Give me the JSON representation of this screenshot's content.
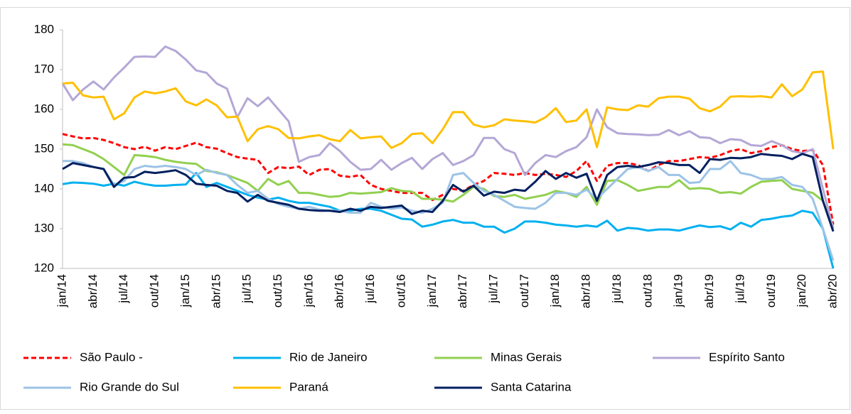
{
  "chart_data": {
    "type": "line",
    "categories": [
      "jan/14",
      null,
      null,
      "abr/14",
      null,
      null,
      "jul/14",
      null,
      null,
      "out/14",
      null,
      null,
      "jan/15",
      null,
      null,
      "abr/15",
      null,
      null,
      "jul/15",
      null,
      null,
      "out/15",
      null,
      null,
      "jan/16",
      null,
      null,
      "abr/16",
      null,
      null,
      "jul/16",
      null,
      null,
      "out/16",
      null,
      null,
      "jan/17",
      null,
      null,
      "abr/17",
      null,
      null,
      "jul/17",
      null,
      null,
      "out/17",
      null,
      null,
      "jan/18",
      null,
      null,
      "abr/18",
      null,
      null,
      "jul/18",
      null,
      null,
      "out/18",
      null,
      null,
      "jan/19",
      null,
      null,
      "abr/19",
      null,
      null,
      "jul/19",
      null,
      null,
      "out/19",
      null,
      null,
      "jan/20",
      null,
      null,
      "abr/20"
    ],
    "ylim": [
      120,
      180
    ],
    "yticks": [
      120,
      130,
      140,
      150,
      160,
      170,
      180
    ],
    "grid": false,
    "series": [
      {
        "name": "São Paulo -",
        "color": "#ff0000",
        "dashed": true,
        "values": [
          153.8,
          153.2,
          152.7,
          152.8,
          152.3,
          151.5,
          150.5,
          150,
          150.6,
          149.6,
          150.5,
          150,
          150.8,
          151.6,
          150.5,
          150.1,
          149,
          148,
          147.6,
          147.3,
          144,
          145.5,
          145.2,
          145.6,
          143.5,
          144.8,
          145,
          143.3,
          143,
          143.5,
          141,
          140,
          139.5,
          139,
          139,
          139,
          137.2,
          138.5,
          140,
          139.5,
          141,
          142,
          144,
          143.8,
          143.5,
          144,
          143.5,
          143.8,
          143.5,
          143,
          144.5,
          147,
          142,
          145.8,
          146.5,
          146.5,
          146,
          144.5,
          146,
          147,
          147,
          147.5,
          148,
          147.8,
          148.5,
          149.5,
          150,
          149,
          149.5,
          150.5,
          151,
          150,
          149.5,
          149.8,
          146,
          131
        ]
      },
      {
        "name": "Rio de Janeiro",
        "color": "#00b0f0",
        "values": [
          141.2,
          141.6,
          141.5,
          141.3,
          140.8,
          141.3,
          140.8,
          141.8,
          141.2,
          140.8,
          140.8,
          141,
          141.1,
          144,
          140.5,
          141.5,
          140.5,
          139.5,
          138.5,
          137.8,
          137.3,
          137.8,
          137,
          136.5,
          136.5,
          136,
          135.5,
          134.5,
          134.5,
          135,
          135,
          134.5,
          133.5,
          132.5,
          132.3,
          130.5,
          131,
          131.8,
          132.2,
          131.5,
          131.5,
          130.5,
          130.5,
          129,
          130,
          131.8,
          131.8,
          131.5,
          131,
          130.8,
          130.5,
          130.8,
          130.5,
          132,
          129.5,
          130.2,
          130,
          129.5,
          129.8,
          129.8,
          129.5,
          130.2,
          130.8,
          130.4,
          130.6,
          129.8,
          131.5,
          130.5,
          132.2,
          132.5,
          133,
          133.3,
          134.5,
          134,
          130,
          120
        ]
      },
      {
        "name": "Minas Gerais",
        "color": "#92d050",
        "values": [
          151.2,
          151,
          150,
          149,
          147.5,
          145.5,
          143.5,
          148.5,
          148.3,
          148,
          147.3,
          146.8,
          146.5,
          146.3,
          144.5,
          144.2,
          143.5,
          142.5,
          141.5,
          139.5,
          142.5,
          141,
          142,
          139,
          139,
          138.5,
          138,
          138.2,
          139,
          138.8,
          139,
          139.2,
          140.2,
          139.5,
          139.3,
          137.5,
          137.5,
          137.3,
          136.8,
          138.5,
          140.5,
          140,
          138.2,
          138,
          138.5,
          137.5,
          138,
          138.5,
          139.5,
          139,
          138,
          140.5,
          136,
          142,
          142.2,
          141,
          139.5,
          140,
          140.5,
          140.5,
          142.2,
          140,
          140.2,
          140,
          139,
          139.2,
          138.8,
          140.5,
          141.8,
          142,
          142.2,
          140,
          139.5,
          139,
          137,
          130.5
        ]
      },
      {
        "name": "Espírito Santo",
        "color": "#b4a7d6",
        "values": [
          166.5,
          162.3,
          165,
          167,
          165,
          168,
          170.5,
          173.2,
          173.3,
          173.2,
          175.8,
          174.7,
          172.5,
          169.8,
          169.2,
          166.5,
          165.2,
          158,
          162.8,
          160.8,
          163,
          160,
          157,
          146.8,
          148,
          148.5,
          151.5,
          149.5,
          146.8,
          144.8,
          145,
          147.3,
          144.8,
          146.5,
          147.8,
          145,
          147.5,
          149,
          146,
          147,
          148.5,
          152.8,
          152.8,
          150,
          149,
          143.5,
          146.5,
          148.5,
          148,
          149.5,
          150.5,
          153,
          160,
          155.5,
          154,
          153.8,
          153.7,
          153.5,
          153.6,
          154.8,
          153.5,
          154.5,
          153,
          152.8,
          151.5,
          152.5,
          152.3,
          151,
          150.8,
          152,
          151,
          149.5,
          149,
          150,
          140,
          130
        ]
      },
      {
        "name": "Rio Grande do Sul",
        "color": "#9dc3e6",
        "values": [
          147,
          147,
          146.5,
          145.5,
          145,
          141,
          142,
          145,
          145.8,
          145.5,
          145.8,
          145.5,
          145,
          143.5,
          144.8,
          144,
          143.5,
          141,
          139,
          139.5,
          137.5,
          136.2,
          135.5,
          135,
          135.5,
          134.8,
          134.5,
          134.5,
          134,
          134,
          136.5,
          135.5,
          135,
          135.3,
          134.5,
          134,
          135,
          136.5,
          143.5,
          144,
          141.5,
          139.5,
          138.5,
          137,
          135.5,
          135.2,
          135,
          136.5,
          139,
          139,
          138.5,
          139.8,
          137.5,
          140,
          142.5,
          145,
          145.5,
          144.5,
          145.5,
          143.5,
          143.5,
          141.5,
          141.7,
          145,
          145,
          147,
          144,
          143.5,
          142.5,
          142.5,
          143,
          141,
          140.5,
          137.5,
          130,
          122
        ]
      },
      {
        "name": "Paraná",
        "color": "#ffc000",
        "values": [
          166.5,
          166.7,
          163.5,
          163,
          163.2,
          157.5,
          159,
          163,
          164.5,
          164,
          164.5,
          165.3,
          162,
          161,
          162.5,
          161,
          158,
          158.2,
          152,
          155,
          155.8,
          155,
          152.8,
          152.7,
          153.2,
          153.5,
          152.5,
          152,
          154.8,
          152.7,
          153,
          153.2,
          150.3,
          151.5,
          153.8,
          154,
          151.5,
          155,
          159.3,
          159.3,
          156.2,
          155.5,
          156,
          157.5,
          157.2,
          157,
          156.7,
          158,
          160.3,
          156.8,
          157.2,
          160,
          150.5,
          160.5,
          160,
          159.8,
          161,
          160.7,
          162.8,
          163.2,
          163.2,
          162.7,
          160.3,
          159.5,
          160.7,
          163.2,
          163.3,
          163.2,
          163.3,
          163,
          166.3,
          163.3,
          165,
          169.3,
          169.5,
          150
        ]
      },
      {
        "name": "Santa Catarina",
        "color": "#002060",
        "values": [
          145,
          146.5,
          146,
          145.5,
          145,
          140.5,
          142.8,
          143,
          144.3,
          144,
          144.3,
          144.7,
          143.5,
          141.3,
          141,
          140.8,
          139.5,
          139,
          136.8,
          138.5,
          137,
          136.5,
          136,
          135,
          134.7,
          134.5,
          134.5,
          134.2,
          135,
          134.5,
          135.5,
          135.2,
          135.5,
          135.8,
          133.7,
          134.5,
          134.2,
          137,
          141,
          139.3,
          140.8,
          138.3,
          139.3,
          139,
          139.8,
          139.5,
          141.8,
          144.5,
          142.5,
          144,
          142.8,
          143.8,
          137,
          143.5,
          145.5,
          145.8,
          145.5,
          146,
          146.7,
          146.5,
          146,
          146,
          144,
          147.5,
          147.3,
          147.8,
          147.7,
          148,
          148.8,
          148.5,
          148.3,
          147.5,
          148.8,
          148,
          137,
          129.3
        ]
      }
    ]
  }
}
